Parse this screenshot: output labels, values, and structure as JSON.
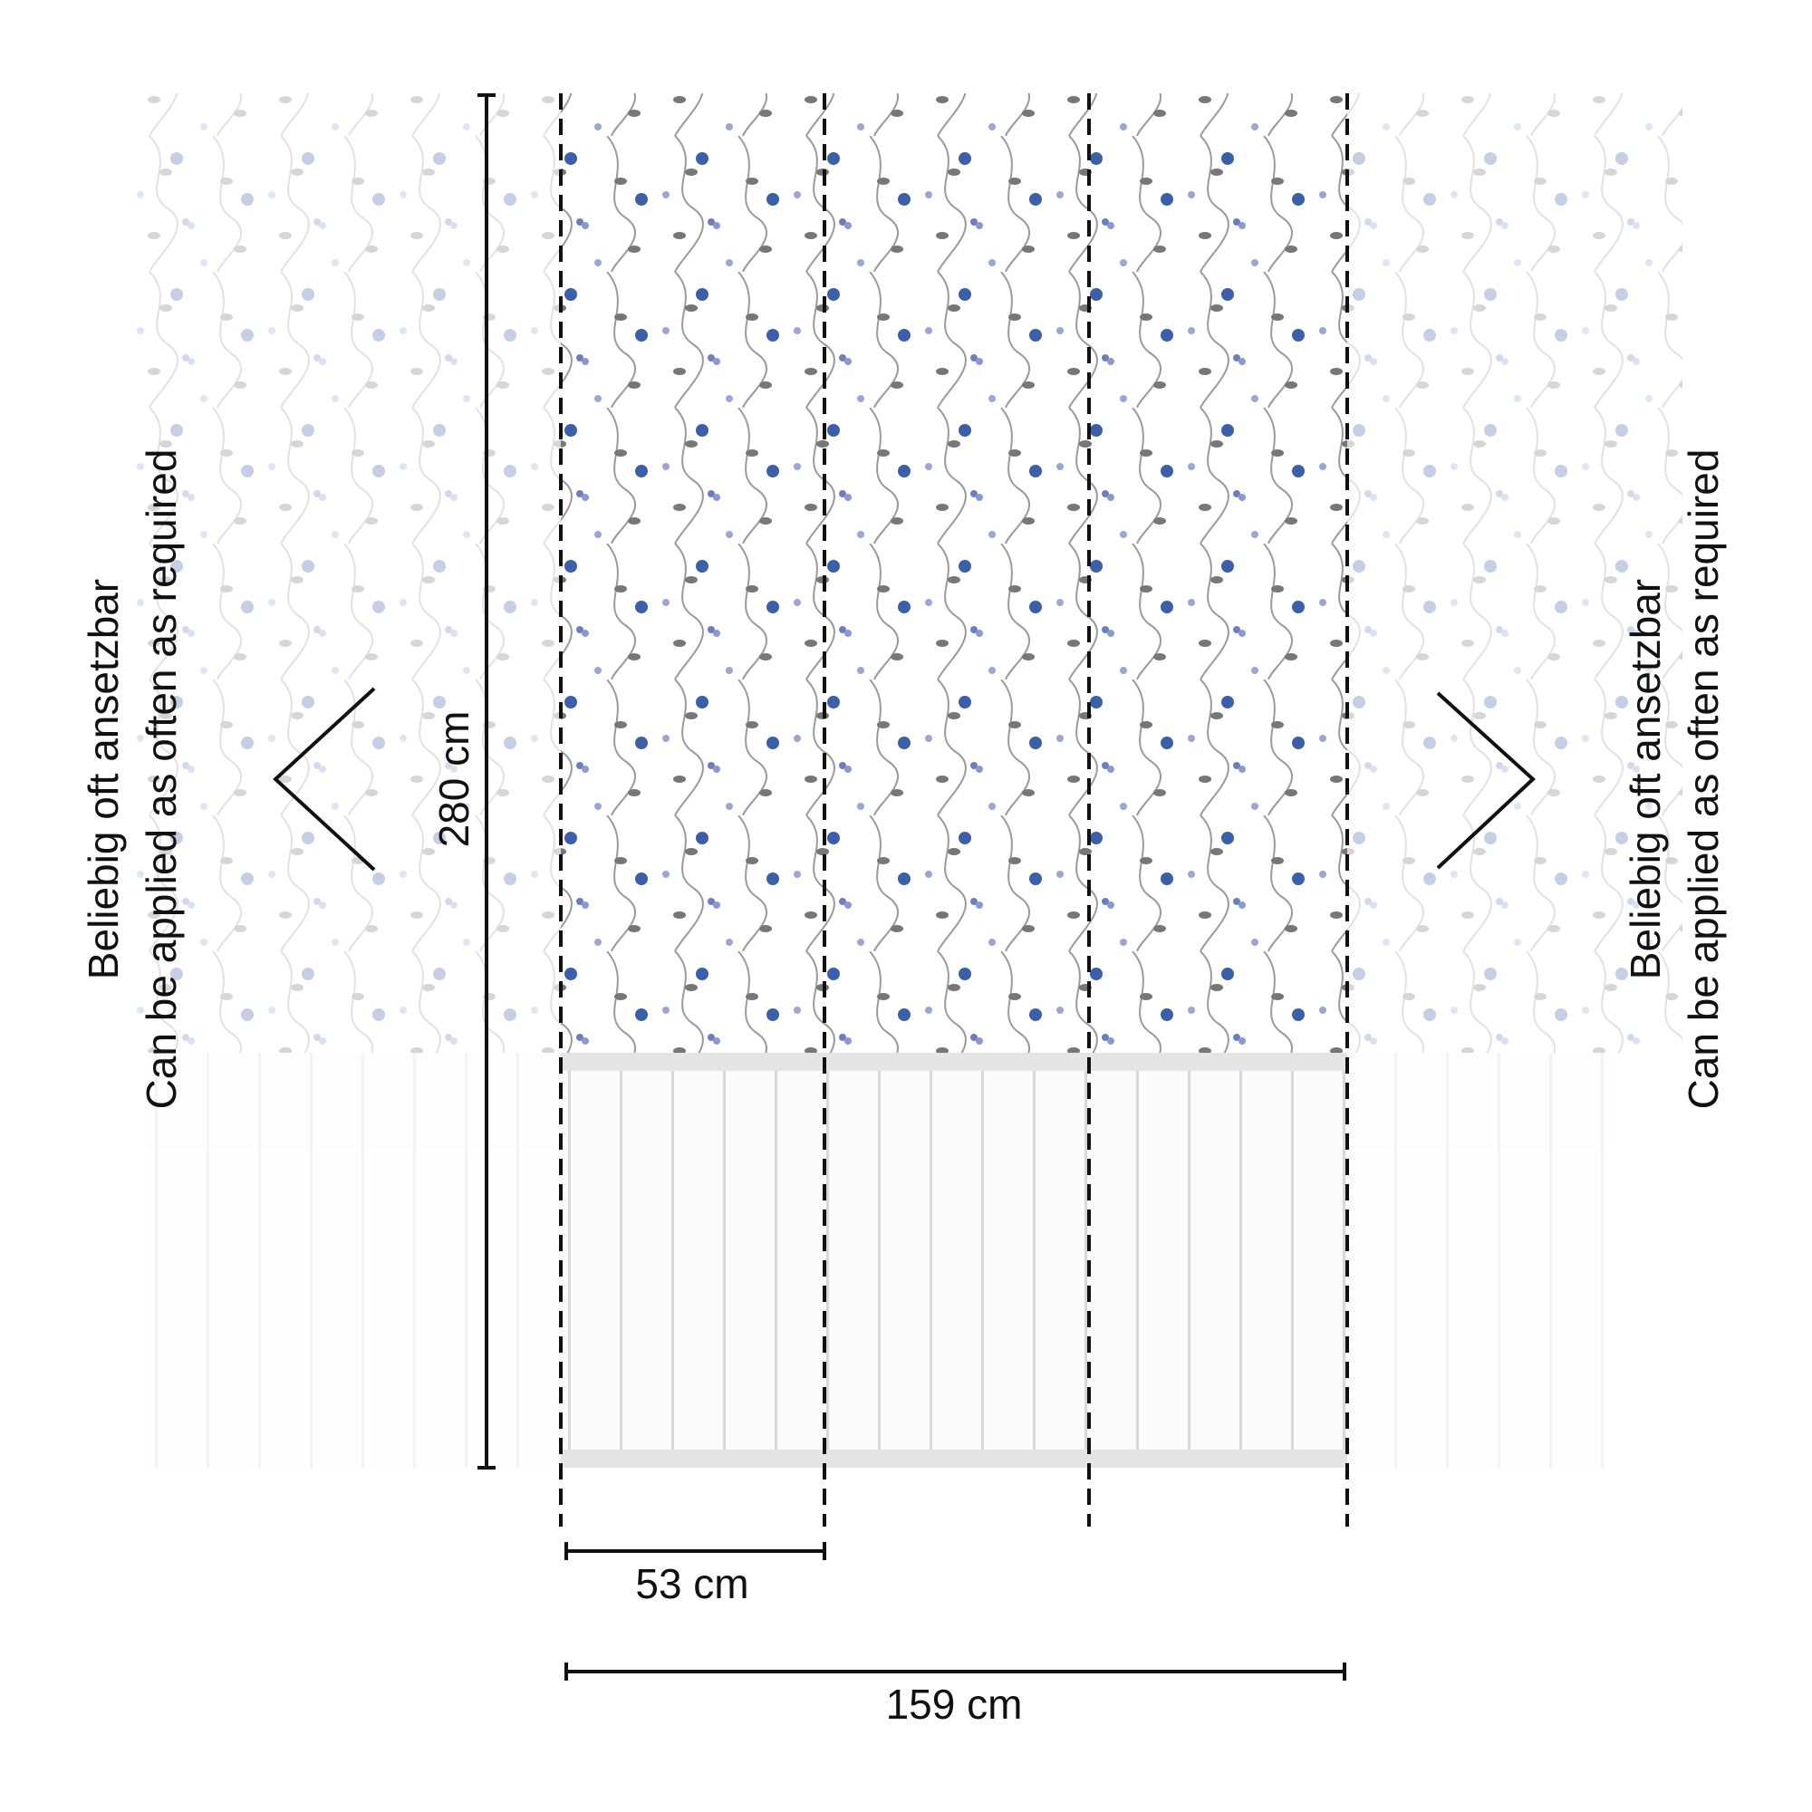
{
  "height_label": "280 cm",
  "panel_width_label": "53 cm",
  "total_width_label": "159 cm",
  "left_note": {
    "line1": "Beliebig oft ansetzbar",
    "line2": "Can be applied as often as required"
  },
  "right_note": {
    "line1": "Beliebig oft ansetzbar",
    "line2": "Can be applied as often as required"
  }
}
